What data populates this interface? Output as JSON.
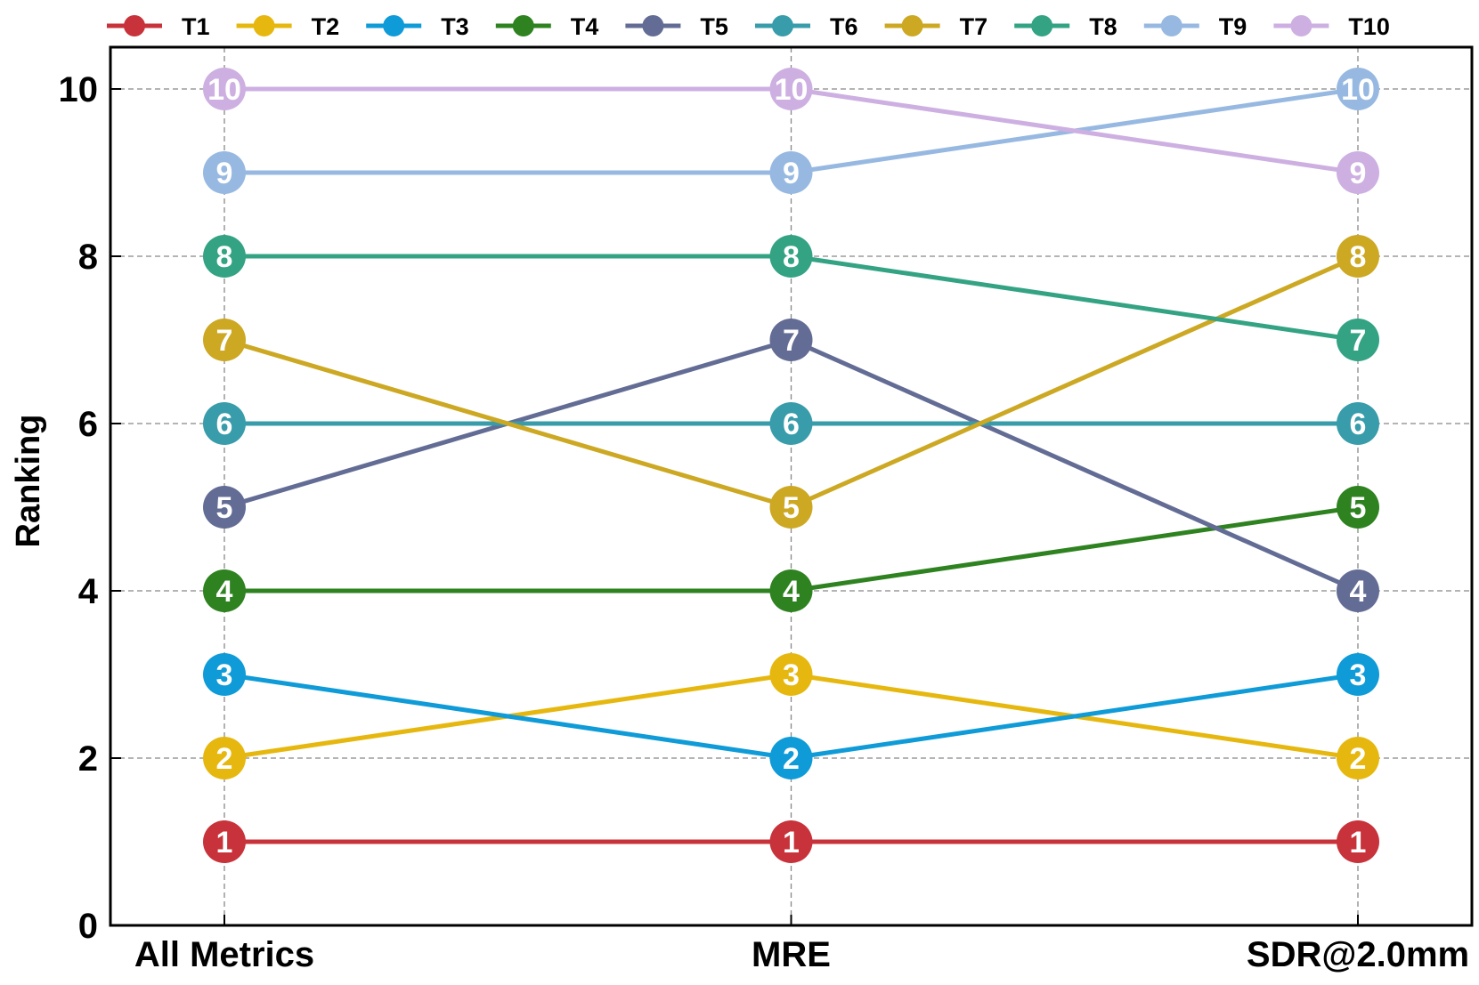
{
  "chart_data": {
    "type": "line",
    "title": "",
    "xlabel": "",
    "ylabel": "Ranking",
    "categories": [
      "All Metrics",
      "MRE",
      "SDR@2.0mm"
    ],
    "ylim": [
      0,
      10.5
    ],
    "yticks": [
      0,
      2,
      4,
      6,
      8,
      10
    ],
    "grid": true,
    "legend_placement": "top",
    "series": [
      {
        "name": "T1",
        "color": "#C8323A",
        "values": [
          1,
          1,
          1
        ]
      },
      {
        "name": "T2",
        "color": "#E6B80F",
        "values": [
          2,
          3,
          2
        ]
      },
      {
        "name": "T3",
        "color": "#0F9BD7",
        "values": [
          3,
          2,
          3
        ]
      },
      {
        "name": "T4",
        "color": "#2E8220",
        "values": [
          4,
          4,
          5
        ]
      },
      {
        "name": "T5",
        "color": "#636C94",
        "values": [
          5,
          7,
          4
        ]
      },
      {
        "name": "T6",
        "color": "#389CAA",
        "values": [
          6,
          6,
          6
        ]
      },
      {
        "name": "T7",
        "color": "#CCA823",
        "values": [
          7,
          5,
          8
        ]
      },
      {
        "name": "T8",
        "color": "#33A383",
        "values": [
          8,
          8,
          7
        ]
      },
      {
        "name": "T9",
        "color": "#97B9E1",
        "values": [
          9,
          9,
          10
        ]
      },
      {
        "name": "T10",
        "color": "#CDB0E1",
        "values": [
          10,
          10,
          9
        ]
      }
    ]
  }
}
